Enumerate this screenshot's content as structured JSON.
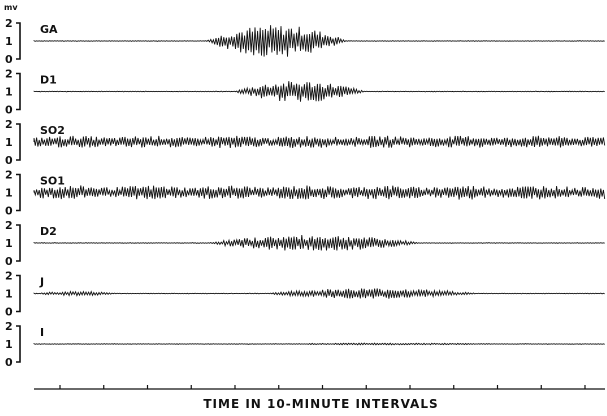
{
  "chart_data": {
    "type": "line",
    "y_unit": "mv",
    "y_ticks": [
      "2",
      "1",
      "0"
    ],
    "ylim": [
      0,
      2
    ],
    "xlabel": "TIME IN 10-MINUTE INTERVALS",
    "x_intervals": 12,
    "traces": [
      {
        "name": "GA",
        "baseline": 1,
        "bursts": [
          {
            "start": 0.3,
            "end": 0.55,
            "peak_mv": 0.9
          }
        ]
      },
      {
        "name": "D1",
        "baseline": 1,
        "bursts": [
          {
            "start": 0.35,
            "end": 0.58,
            "peak_mv": 0.6
          }
        ]
      },
      {
        "name": "SO2",
        "baseline": 1,
        "bursts": [
          {
            "start": 0.0,
            "end": 1.0,
            "peak_mv": 0.35
          }
        ]
      },
      {
        "name": "SO1",
        "baseline": 1,
        "bursts": [
          {
            "start": 0.0,
            "end": 1.0,
            "peak_mv": 0.4
          }
        ]
      },
      {
        "name": "D2",
        "baseline": 1,
        "bursts": [
          {
            "start": 0.3,
            "end": 0.68,
            "peak_mv": 0.45
          }
        ]
      },
      {
        "name": "J",
        "baseline": 1,
        "bursts": [
          {
            "start": 0.0,
            "end": 0.15,
            "peak_mv": 0.12
          },
          {
            "start": 0.4,
            "end": 0.78,
            "peak_mv": 0.3
          }
        ]
      },
      {
        "name": "I",
        "baseline": 1,
        "bursts": [
          {
            "start": 0.4,
            "end": 0.85,
            "peak_mv": 0.05
          }
        ]
      }
    ]
  }
}
